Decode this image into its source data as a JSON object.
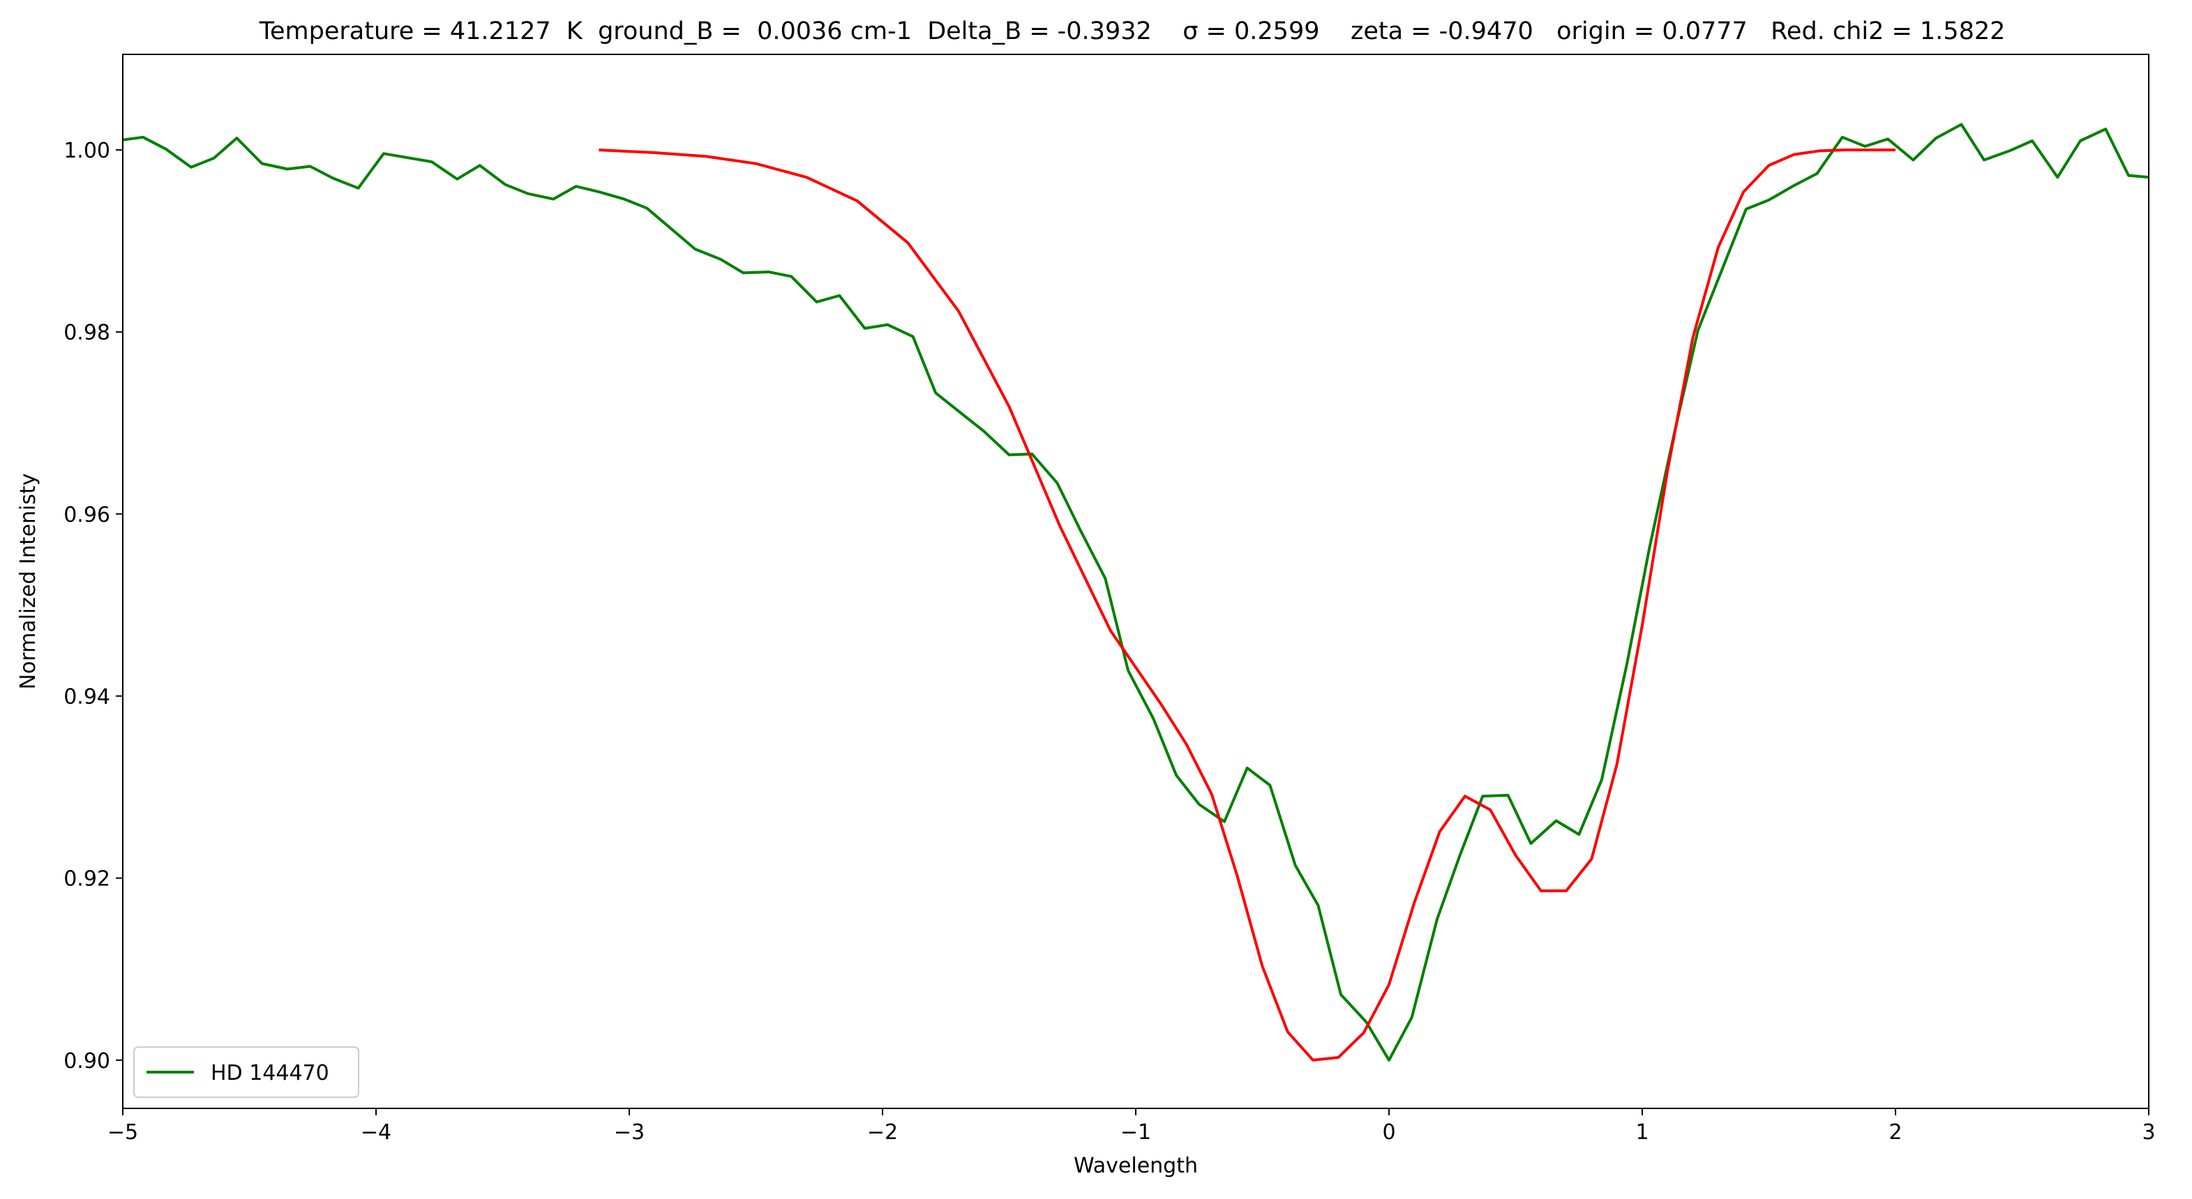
{
  "chart_data": {
    "type": "line",
    "title": "Temperature = 41.2127  K  ground_B =  0.0036 cm-1  Delta_B = -0.3932    σ = 0.2599    zeta = -0.9470   origin = 0.0777   Red. chi2 = 1.5822",
    "xlabel": "Wavelength",
    "ylabel": "Normalized Intenisty",
    "xlim": [
      -5,
      3
    ],
    "ylim": [
      0.8947,
      1.0105
    ],
    "xticks": [
      "−5",
      "−4",
      "−3",
      "−2",
      "−1",
      "0",
      "1",
      "2",
      "3"
    ],
    "yticks": [
      "0.90",
      "0.92",
      "0.94",
      "0.96",
      "0.98",
      "1.00"
    ],
    "grid": false,
    "legend_position": "lower-left",
    "series": [
      {
        "name": "HD 144470",
        "color": "#008000",
        "x": [
          -5.0,
          -4.92,
          -4.83,
          -4.73,
          -4.64,
          -4.55,
          -4.45,
          -4.35,
          -4.26,
          -4.17,
          -4.07,
          -3.97,
          -3.78,
          -3.68,
          -3.59,
          -3.49,
          -3.4,
          -3.3,
          -3.21,
          -3.12,
          -3.02,
          -2.93,
          -2.74,
          -2.64,
          -2.55,
          -2.45,
          -2.36,
          -2.26,
          -2.17,
          -2.07,
          -1.98,
          -1.88,
          -1.79,
          -1.6,
          -1.5,
          -1.41,
          -1.31,
          -1.22,
          -1.12,
          -1.03,
          -0.93,
          -0.84,
          -0.75,
          -0.65,
          -0.56,
          -0.47,
          -0.37,
          -0.28,
          -0.19,
          -0.09,
          0.0,
          0.09,
          0.19,
          0.28,
          0.37,
          0.47,
          0.56,
          0.66,
          0.75,
          0.84,
          0.94,
          1.03,
          1.13,
          1.22,
          1.41,
          1.5,
          1.6,
          1.69,
          1.79,
          1.88,
          1.97,
          2.07,
          2.16,
          2.26,
          2.35,
          2.45,
          2.54,
          2.64,
          2.73,
          2.83,
          2.92,
          3.0
        ],
        "y": [
          1.0011,
          1.0014,
          1.0001,
          0.9981,
          0.9991,
          1.0013,
          0.9985,
          0.9979,
          0.9982,
          0.9969,
          0.9958,
          0.9996,
          0.9987,
          0.9968,
          0.9983,
          0.9962,
          0.9952,
          0.9946,
          0.996,
          0.9954,
          0.9946,
          0.9936,
          0.9891,
          0.988,
          0.9865,
          0.9866,
          0.9861,
          0.9833,
          0.984,
          0.9804,
          0.9808,
          0.9795,
          0.9733,
          0.9691,
          0.9665,
          0.9666,
          0.9634,
          0.9583,
          0.9529,
          0.9428,
          0.9375,
          0.9313,
          0.9281,
          0.9262,
          0.9321,
          0.9302,
          0.9214,
          0.917,
          0.9072,
          0.9042,
          0.9,
          0.9047,
          0.9155,
          0.9225,
          0.929,
          0.9291,
          0.9238,
          0.9263,
          0.9248,
          0.9308,
          0.9436,
          0.9565,
          0.9693,
          0.9802,
          0.9935,
          0.9945,
          0.9961,
          0.9974,
          1.0014,
          1.0004,
          1.0012,
          0.9989,
          1.0013,
          1.0028,
          0.9989,
          0.9999,
          1.001,
          0.997,
          1.001,
          1.0023,
          0.9972,
          0.997
        ]
      },
      {
        "color": "#ff0000",
        "x": [
          -3.12,
          -2.9,
          -2.7,
          -2.5,
          -2.3,
          -2.1,
          -1.9,
          -1.7,
          -1.5,
          -1.3,
          -1.1,
          -0.9,
          -0.8,
          -0.7,
          -0.6,
          -0.5,
          -0.4,
          -0.3,
          -0.2,
          -0.1,
          0.0,
          0.1,
          0.2,
          0.3,
          0.4,
          0.5,
          0.6,
          0.7,
          0.8,
          0.9,
          1.0,
          1.1,
          1.2,
          1.3,
          1.4,
          1.5,
          1.6,
          1.7,
          1.8,
          1.9,
          2.0
        ],
        "y": [
          1.0,
          0.9997,
          0.9993,
          0.9985,
          0.997,
          0.9944,
          0.9898,
          0.9823,
          0.9718,
          0.9587,
          0.9472,
          0.9391,
          0.9347,
          0.9292,
          0.9203,
          0.9103,
          0.9031,
          0.9,
          0.9003,
          0.903,
          0.9083,
          0.9173,
          0.9251,
          0.929,
          0.9275,
          0.9225,
          0.9186,
          0.9186,
          0.9221,
          0.9325,
          0.9478,
          0.9648,
          0.9794,
          0.9893,
          0.9954,
          0.9983,
          0.9995,
          0.9999,
          1.0,
          1.0,
          1.0
        ]
      }
    ]
  }
}
